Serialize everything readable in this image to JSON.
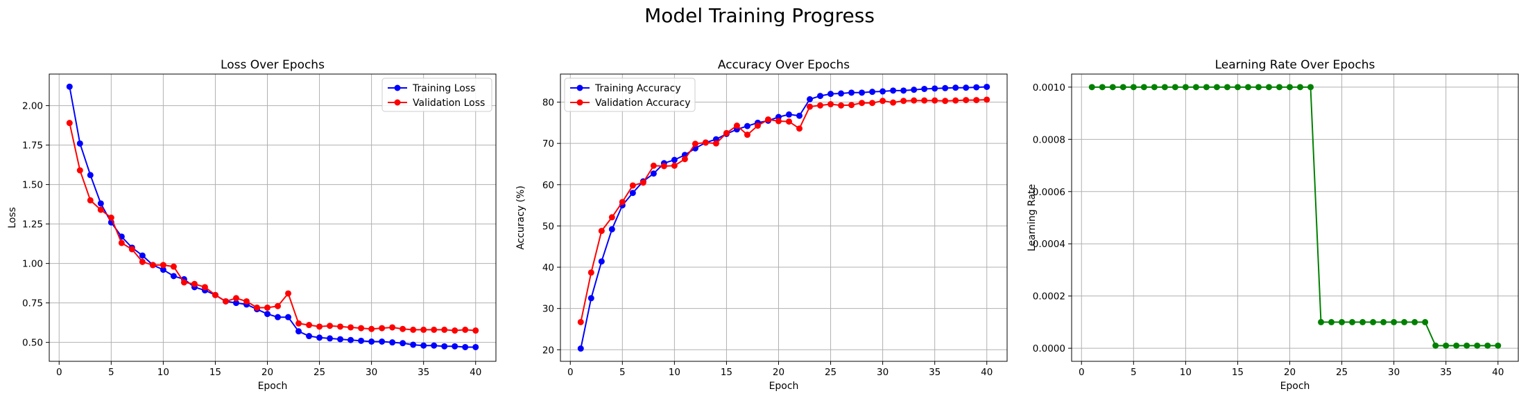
{
  "figure": {
    "title": "Model Training Progress"
  },
  "chart_data": [
    {
      "type": "line",
      "title": "Loss Over Epochs",
      "xlabel": "Epoch",
      "ylabel": "Loss",
      "xlim": [
        -0.95,
        41.95
      ],
      "ylim": [
        0.38,
        2.2
      ],
      "xticks": [
        0,
        5,
        10,
        15,
        20,
        25,
        30,
        35,
        40
      ],
      "yticks": [
        0.5,
        0.75,
        1.0,
        1.25,
        1.5,
        1.75,
        2.0
      ],
      "ytick_labels": [
        "0.50",
        "0.75",
        "1.00",
        "1.25",
        "1.50",
        "1.75",
        "2.00"
      ],
      "grid": true,
      "legend": "upper right",
      "x": [
        1,
        2,
        3,
        4,
        5,
        6,
        7,
        8,
        9,
        10,
        11,
        12,
        13,
        14,
        15,
        16,
        17,
        18,
        19,
        20,
        21,
        22,
        23,
        24,
        25,
        26,
        27,
        28,
        29,
        30,
        31,
        32,
        33,
        34,
        35,
        36,
        37,
        38,
        39,
        40
      ],
      "series": [
        {
          "name": "Training Loss",
          "color": "#0000ff",
          "values": [
            2.12,
            1.76,
            1.56,
            1.38,
            1.26,
            1.17,
            1.1,
            1.05,
            0.99,
            0.96,
            0.92,
            0.9,
            0.85,
            0.83,
            0.8,
            0.76,
            0.75,
            0.74,
            0.71,
            0.68,
            0.66,
            0.66,
            0.57,
            0.54,
            0.53,
            0.525,
            0.52,
            0.515,
            0.51,
            0.505,
            0.505,
            0.5,
            0.495,
            0.485,
            0.48,
            0.48,
            0.475,
            0.475,
            0.47,
            0.47
          ]
        },
        {
          "name": "Validation Loss",
          "color": "#ff0000",
          "values": [
            1.89,
            1.59,
            1.4,
            1.34,
            1.29,
            1.13,
            1.09,
            1.01,
            0.99,
            0.99,
            0.98,
            0.88,
            0.87,
            0.85,
            0.8,
            0.76,
            0.78,
            0.76,
            0.72,
            0.72,
            0.73,
            0.81,
            0.62,
            0.61,
            0.6,
            0.605,
            0.6,
            0.595,
            0.59,
            0.585,
            0.59,
            0.595,
            0.585,
            0.58,
            0.58,
            0.58,
            0.58,
            0.575,
            0.58,
            0.575
          ]
        }
      ]
    },
    {
      "type": "line",
      "title": "Accuracy Over Epochs",
      "xlabel": "Epoch",
      "ylabel": "Accuracy (%)",
      "xlim": [
        -0.95,
        41.95
      ],
      "ylim": [
        17.2,
        86.8
      ],
      "xticks": [
        0,
        5,
        10,
        15,
        20,
        25,
        30,
        35,
        40
      ],
      "yticks": [
        20,
        30,
        40,
        50,
        60,
        70,
        80
      ],
      "ytick_labels": [
        "20",
        "30",
        "40",
        "50",
        "60",
        "70",
        "80"
      ],
      "grid": true,
      "legend": "upper left",
      "x": [
        1,
        2,
        3,
        4,
        5,
        6,
        7,
        8,
        9,
        10,
        11,
        12,
        13,
        14,
        15,
        16,
        17,
        18,
        19,
        20,
        21,
        22,
        23,
        24,
        25,
        26,
        27,
        28,
        29,
        30,
        31,
        32,
        33,
        34,
        35,
        36,
        37,
        38,
        39,
        40
      ],
      "series": [
        {
          "name": "Training Accuracy",
          "color": "#0000ff",
          "values": [
            20.3,
            32.5,
            41.4,
            49.2,
            55.0,
            58.0,
            60.8,
            62.7,
            65.2,
            66.0,
            67.2,
            68.8,
            70.2,
            71.0,
            72.3,
            73.4,
            74.2,
            75.0,
            75.5,
            76.4,
            77.0,
            76.7,
            80.7,
            81.5,
            82.0,
            82.1,
            82.3,
            82.3,
            82.5,
            82.6,
            82.8,
            82.8,
            83.0,
            83.2,
            83.3,
            83.4,
            83.5,
            83.5,
            83.6,
            83.7
          ]
        },
        {
          "name": "Validation Accuracy",
          "color": "#ff0000",
          "values": [
            26.7,
            38.7,
            48.8,
            52.1,
            55.8,
            59.8,
            60.5,
            64.6,
            64.5,
            64.6,
            66.2,
            69.9,
            70.2,
            70.0,
            72.5,
            74.3,
            72.1,
            74.3,
            75.8,
            75.4,
            75.3,
            73.6,
            78.9,
            79.2,
            79.5,
            79.2,
            79.3,
            79.8,
            79.8,
            80.3,
            79.9,
            80.3,
            80.4,
            80.4,
            80.4,
            80.3,
            80.4,
            80.5,
            80.5,
            80.6
          ]
        }
      ]
    },
    {
      "type": "line",
      "title": "Learning Rate Over Epochs",
      "xlabel": "Epoch",
      "ylabel": "Learning Rate",
      "xlim": [
        -0.95,
        41.95
      ],
      "ylim": [
        -5e-05,
        0.00105
      ],
      "xticks": [
        0,
        5,
        10,
        15,
        20,
        25,
        30,
        35,
        40
      ],
      "yticks": [
        0,
        0.0002,
        0.0004,
        0.0006,
        0.0008,
        0.001
      ],
      "ytick_labels": [
        "0.0000",
        "0.0002",
        "0.0004",
        "0.0006",
        "0.0008",
        "0.0010"
      ],
      "grid": true,
      "legend": "none",
      "x": [
        1,
        2,
        3,
        4,
        5,
        6,
        7,
        8,
        9,
        10,
        11,
        12,
        13,
        14,
        15,
        16,
        17,
        18,
        19,
        20,
        21,
        22,
        23,
        24,
        25,
        26,
        27,
        28,
        29,
        30,
        31,
        32,
        33,
        34,
        35,
        36,
        37,
        38,
        39,
        40
      ],
      "series": [
        {
          "name": "",
          "color": "#008000",
          "values": [
            0.001,
            0.001,
            0.001,
            0.001,
            0.001,
            0.001,
            0.001,
            0.001,
            0.001,
            0.001,
            0.001,
            0.001,
            0.001,
            0.001,
            0.001,
            0.001,
            0.001,
            0.001,
            0.001,
            0.001,
            0.001,
            0.001,
            0.0001,
            0.0001,
            0.0001,
            0.0001,
            0.0001,
            0.0001,
            0.0001,
            0.0001,
            0.0001,
            0.0001,
            0.0001,
            1e-05,
            1e-05,
            1e-05,
            1e-05,
            1e-05,
            1e-05,
            1e-05
          ]
        }
      ]
    }
  ]
}
